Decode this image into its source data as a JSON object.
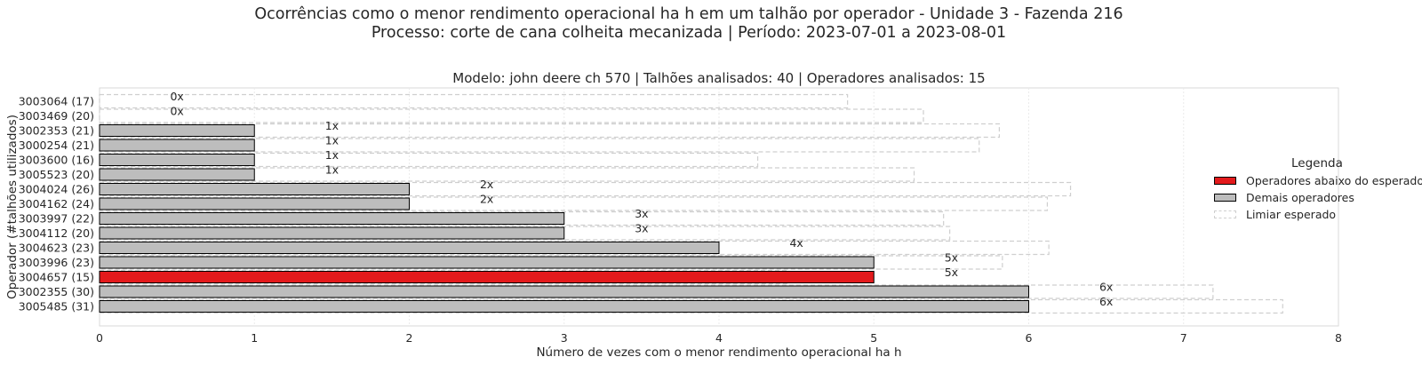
{
  "chart_data": {
    "type": "bar",
    "orientation": "horizontal",
    "title": "Ocorrências como o menor rendimento operacional ha h em um talhão por operador - Unidade 3 - Fazenda 216",
    "title_line2": "Processo: corte de cana colheita mecanizada | Período: 2023-07-01 a 2023-08-01",
    "subtitle": "Modelo: john deere ch 570 | Talhões analisados: 40 | Operadores analisados: 15",
    "xlabel": "Número de vezes com o menor rendimento operacional ha h",
    "ylabel": "Operador (#talhões utilizados)",
    "xlim": [
      0,
      8
    ],
    "xticks": [
      "0",
      "1",
      "2",
      "3",
      "4",
      "5",
      "6",
      "7",
      "8"
    ],
    "grid": true,
    "categories": [
      "3003064 (17)",
      "3003469 (20)",
      "3002353 (21)",
      "3000254 (21)",
      "3003600 (16)",
      "3005523 (20)",
      "3004024 (26)",
      "3004162 (24)",
      "3003997 (22)",
      "3004112 (20)",
      "3004623 (23)",
      "3003996 (23)",
      "3004657 (15)",
      "3002355 (30)",
      "3005485 (31)"
    ],
    "values": [
      0,
      0,
      1,
      1,
      1,
      1,
      2,
      2,
      3,
      3,
      4,
      5,
      5,
      6,
      6
    ],
    "value_labels": [
      "0x",
      "0x",
      "1x",
      "1x",
      "1x",
      "1x",
      "2x",
      "2x",
      "3x",
      "3x",
      "4x",
      "5x",
      "5x",
      "6x",
      "6x"
    ],
    "thresholds": [
      4.83,
      5.32,
      5.81,
      5.68,
      4.25,
      5.26,
      6.27,
      6.12,
      5.45,
      5.49,
      6.13,
      5.83,
      4.45,
      7.19,
      7.64
    ],
    "below_expected": [
      false,
      false,
      false,
      false,
      false,
      false,
      false,
      false,
      false,
      false,
      false,
      false,
      true,
      false,
      false
    ],
    "colors": {
      "below": "#e31a1c",
      "other": "#bdbdbd",
      "threshold": "#cfcfcf",
      "grid": "#ebebeb"
    },
    "legend": {
      "title": "Legenda",
      "position": "center-right",
      "items": [
        "Operadores abaixo do esperado",
        "Demais operadores",
        "Limiar esperado"
      ]
    }
  }
}
